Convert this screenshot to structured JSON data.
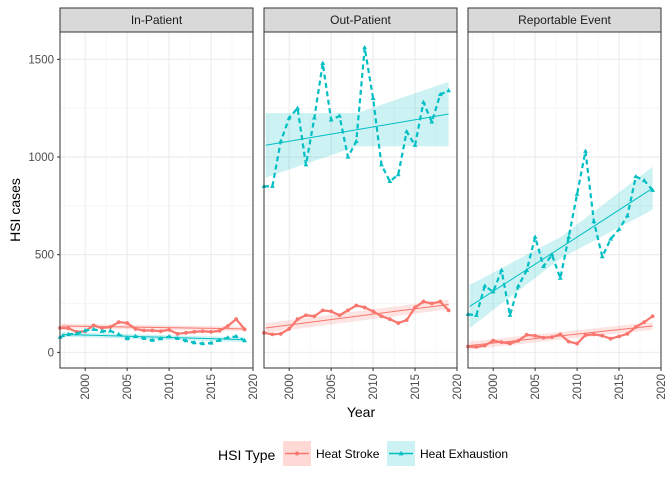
{
  "chart_data": {
    "type": "line",
    "xlabel": "Year",
    "ylabel": "HSI cases",
    "xlim": [
      1997,
      2020
    ],
    "ylim": [
      -80,
      1640
    ],
    "x_ticks": [
      "2000",
      "2005",
      "2010",
      "2015",
      "2020"
    ],
    "y_ticks": [
      "0",
      "500",
      "1000",
      "1500"
    ],
    "x": [
      1997,
      1998,
      1999,
      2000,
      2001,
      2002,
      2003,
      2004,
      2005,
      2006,
      2007,
      2008,
      2009,
      2010,
      2011,
      2012,
      2013,
      2014,
      2015,
      2016,
      2017,
      2018,
      2019
    ],
    "legend": {
      "title": "HSI Type",
      "position": "bottom",
      "entries": [
        "Heat Stroke",
        "Heat Exhaustion"
      ]
    },
    "colors": {
      "Heat Stroke": "#F8766D",
      "Heat Exhaustion": "#00BFC4"
    },
    "panels": [
      {
        "strip": "In-Patient",
        "series": [
          {
            "name": "Heat Stroke",
            "values": [
              125,
              123,
              105,
              108,
              138,
              125,
              130,
              155,
              150,
              120,
              112,
              112,
              108,
              115,
              95,
              100,
              105,
              108,
              105,
              110,
              135,
              170,
              118
            ],
            "trend": [
              135,
              120
            ],
            "band": 12
          },
          {
            "name": "Heat Exhaustion",
            "values": [
              78,
              92,
              95,
              112,
              118,
              108,
              110,
              92,
              70,
              82,
              72,
              62,
              70,
              80,
              72,
              60,
              50,
              45,
              48,
              62,
              75,
              82,
              60
            ],
            "trend": [
              92,
              65
            ],
            "band": 12
          }
        ]
      },
      {
        "strip": "Out-Patient",
        "series": [
          {
            "name": "Heat Stroke",
            "values": [
              100,
              92,
              95,
              120,
              170,
              190,
              185,
              215,
              210,
              190,
              215,
              240,
              230,
              210,
              185,
              170,
              150,
              165,
              230,
              260,
              250,
              260,
              215
            ],
            "trend": [
              125,
              245
            ],
            "band": 25
          },
          {
            "name": "Heat Exhaustion",
            "values": [
              850,
              850,
              1080,
              1200,
              1250,
              960,
              1200,
              1480,
              1190,
              1210,
              1000,
              1080,
              1560,
              1300,
              960,
              875,
              910,
              1130,
              1060,
              1280,
              1180,
              1320,
              1340
            ],
            "trend": [
              1060,
              1220
            ],
            "band": [
              165,
              85,
              165
            ]
          }
        ]
      },
      {
        "strip": "Reportable Event",
        "series": [
          {
            "name": "Heat Stroke",
            "values": [
              30,
              28,
              35,
              60,
              52,
              45,
              60,
              90,
              85,
              75,
              78,
              92,
              55,
              45,
              88,
              92,
              85,
              70,
              82,
              95,
              130,
              155,
              185
            ],
            "trend": [
              35,
              135
            ],
            "band": 20
          },
          {
            "name": "Heat Exhaustion",
            "values": [
              195,
              190,
              340,
              310,
              420,
              190,
              340,
              420,
              590,
              440,
              500,
              380,
              590,
              810,
              1030,
              670,
              490,
              580,
              630,
              700,
              900,
              880,
              830
            ],
            "trend": [
              235,
              840
            ],
            "band": [
              110,
              55,
              110
            ]
          }
        ]
      }
    ]
  }
}
